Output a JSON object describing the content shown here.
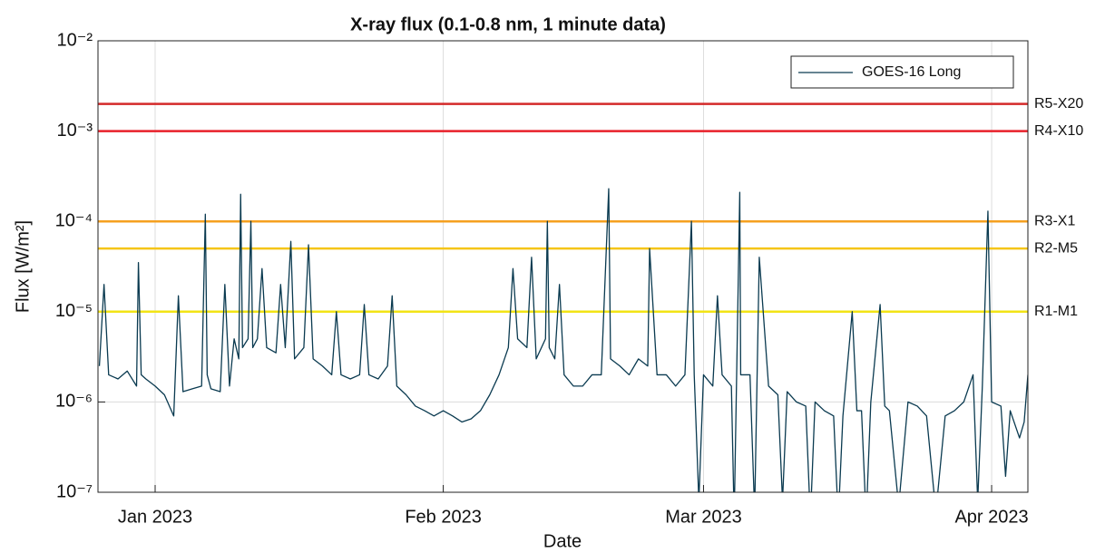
{
  "chart_data": {
    "type": "line",
    "title": "X-ray flux (0.1-0.8 nm, 1 minute data)",
    "x_label": "Date",
    "y_label": "Flux [W/m²]",
    "log_y": true,
    "grid": true,
    "legend": "top-right",
    "xlim": [
      -6.15,
      93.9
    ],
    "xticks": [
      {
        "value": 0,
        "label": "Jan 2023"
      },
      {
        "value": 31,
        "label": "Feb 2023"
      },
      {
        "value": 59,
        "label": "Mar 2023"
      },
      {
        "value": 90,
        "label": "Apr 2023"
      }
    ],
    "ylim": [
      1e-07,
      0.01
    ],
    "yticks": [
      {
        "value": 1e-07,
        "label": "10⁻⁷"
      },
      {
        "value": 1e-06,
        "label": "10⁻⁶"
      },
      {
        "value": 1e-05,
        "label": "10⁻⁵"
      },
      {
        "value": 0.0001,
        "label": "10⁻⁴"
      },
      {
        "value": 0.001,
        "label": "10⁻³"
      },
      {
        "value": 0.01,
        "label": "10⁻²"
      }
    ],
    "thresholds": [
      {
        "name": "R5-X20",
        "value": 0.002,
        "color": "#d42a2a"
      },
      {
        "name": "R4-X10",
        "value": 0.001,
        "color": "#e8202a"
      },
      {
        "name": "R3-X1",
        "value": 0.0001,
        "color": "#f5a020"
      },
      {
        "name": "R2-M5",
        "value": 5e-05,
        "color": "#f5c518"
      },
      {
        "name": "R1-M1",
        "value": 1e-05,
        "color": "#f2e416"
      }
    ],
    "x": [
      -6,
      -5.5,
      -5,
      -4,
      -3,
      -2,
      -1.8,
      -1.5,
      -1,
      0,
      1,
      2,
      2.5,
      3,
      4,
      5,
      5.4,
      5.6,
      6,
      7,
      7.5,
      8,
      8.5,
      9,
      9.2,
      9.4,
      10,
      10.3,
      10.5,
      11,
      11.5,
      12,
      13,
      13.5,
      14,
      14.6,
      15,
      16,
      16.5,
      17,
      18,
      19,
      19.5,
      20,
      21,
      22,
      22.5,
      23,
      24,
      25,
      25.5,
      26,
      27,
      28,
      29,
      30,
      31,
      32,
      33,
      34,
      35,
      36,
      37,
      38,
      38.5,
      39,
      40,
      40.5,
      41,
      42,
      42.2,
      42.4,
      43,
      43.5,
      44,
      45,
      46,
      47,
      48,
      48.8,
      49,
      50,
      51,
      52,
      53,
      53.2,
      54,
      55,
      56,
      57,
      57.7,
      58,
      58.5,
      59,
      60,
      60.5,
      61,
      62,
      62.3,
      62.9,
      63,
      64,
      64.5,
      65,
      66,
      67,
      67.5,
      68,
      69,
      70,
      70.5,
      71,
      72,
      73,
      73.5,
      74,
      75,
      75.5,
      76,
      76.5,
      77,
      78,
      78.5,
      79,
      80,
      81,
      82,
      83,
      84,
      85,
      86,
      87,
      88,
      88.5,
      89,
      89.6,
      90,
      91,
      91.5,
      92,
      93,
      93.5,
      93.9
    ],
    "series": [
      {
        "name": "GOES-16 Long",
        "color": "#0a3a50",
        "values": [
          2.5e-06,
          2e-05,
          2e-06,
          1.8e-06,
          2.2e-06,
          1.5e-06,
          3.5e-05,
          2e-06,
          1.8e-06,
          1.5e-06,
          1.2e-06,
          7e-07,
          1.5e-05,
          1.3e-06,
          1.4e-06,
          1.5e-06,
          0.00012,
          2e-06,
          1.4e-06,
          1.3e-06,
          2e-05,
          1.5e-06,
          5e-06,
          3e-06,
          0.0002,
          4e-06,
          5e-06,
          0.0001,
          4e-06,
          5e-06,
          3e-05,
          4e-06,
          3.5e-06,
          2e-05,
          4e-06,
          6e-05,
          3e-06,
          4e-06,
          5.5e-05,
          3e-06,
          2.5e-06,
          2e-06,
          1e-05,
          2e-06,
          1.8e-06,
          2e-06,
          1.2e-05,
          2e-06,
          1.8e-06,
          2.5e-06,
          1.5e-05,
          1.5e-06,
          1.2e-06,
          9e-07,
          8e-07,
          7e-07,
          8e-07,
          7e-07,
          6e-07,
          6.5e-07,
          8e-07,
          1.2e-06,
          2e-06,
          4e-06,
          3e-05,
          5e-06,
          4e-06,
          4e-05,
          3e-06,
          5e-06,
          0.0001,
          4e-06,
          3e-06,
          2e-05,
          2e-06,
          1.5e-06,
          1.5e-06,
          2e-06,
          2e-06,
          0.00023,
          3e-06,
          2.5e-06,
          2e-06,
          3e-06,
          2.5e-06,
          5e-05,
          2e-06,
          2e-06,
          1.5e-06,
          2e-06,
          0.0001,
          2e-06,
          8e-08,
          2e-06,
          1.5e-06,
          1.5e-05,
          2e-06,
          1.5e-06,
          5e-08,
          0.00021,
          2e-06,
          2e-06,
          6e-08,
          4e-05,
          1.5e-06,
          1.2e-06,
          8e-08,
          1.3e-06,
          1e-06,
          9e-07,
          5e-08,
          1e-06,
          8e-07,
          7e-07,
          5e-08,
          7e-07,
          1e-05,
          8e-07,
          8e-07,
          5e-08,
          1e-06,
          1.2e-05,
          9e-07,
          8e-07,
          7e-08,
          1e-06,
          9e-07,
          7e-07,
          6e-08,
          7e-07,
          8e-07,
          1e-06,
          2e-06,
          8e-08,
          1.5e-06,
          0.00013,
          1e-06,
          9e-07,
          1.5e-07,
          8e-07,
          4e-07,
          6e-07,
          2e-06
        ]
      }
    ]
  }
}
